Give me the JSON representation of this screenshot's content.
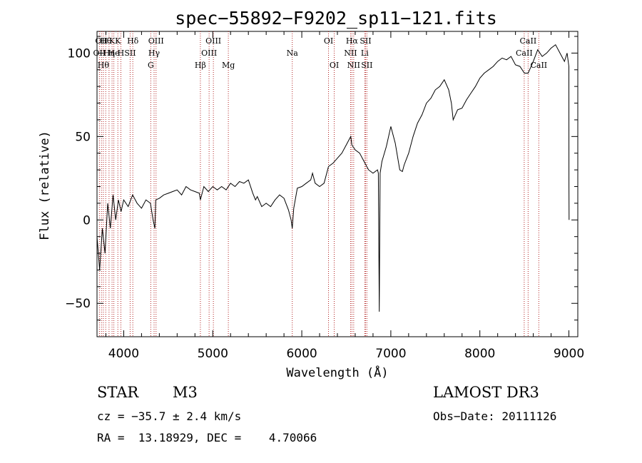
{
  "chart_data": {
    "type": "line",
    "title": "spec−55892−F9202_sp11−121.fits",
    "xlabel": "Wavelength (Å)",
    "ylabel": "Flux (relative)",
    "xlim": [
      3700,
      9100
    ],
    "ylim": [
      -70,
      113
    ],
    "xticks": [
      4000,
      5000,
      6000,
      7000,
      8000,
      9000
    ],
    "yticks": [
      -50,
      0,
      50,
      100
    ],
    "ytick_labels": [
      "−50",
      "0",
      "50",
      "100"
    ],
    "line_color": "#000000",
    "marker_color": "#b22222",
    "series": [
      {
        "x": [
          3700,
          3730,
          3760,
          3790,
          3820,
          3850,
          3880,
          3910,
          3940,
          3970,
          4000,
          4050,
          4100,
          4150,
          4200,
          4250,
          4300,
          4330,
          4350,
          4360,
          4400,
          4450,
          4500,
          4550,
          4600,
          4650,
          4700,
          4750,
          4800,
          4850,
          4861,
          4900,
          4950,
          5000,
          5050,
          5100,
          5150,
          5200,
          5250,
          5300,
          5350,
          5400,
          5450,
          5480,
          5500,
          5550,
          5600,
          5650,
          5700,
          5750,
          5800,
          5850,
          5880,
          5893,
          5910,
          5950,
          6000,
          6050,
          6100,
          6120,
          6150,
          6200,
          6250,
          6300,
          6350,
          6400,
          6450,
          6500,
          6550,
          6562,
          6600,
          6650,
          6700,
          6750,
          6800,
          6850,
          6860,
          6870,
          6880,
          6900,
          6950,
          7000,
          7050,
          7100,
          7130,
          7150,
          7200,
          7250,
          7300,
          7350,
          7400,
          7450,
          7500,
          7550,
          7600,
          7650,
          7680,
          7700,
          7750,
          7800,
          7850,
          7900,
          7950,
          8000,
          8050,
          8100,
          8150,
          8200,
          8250,
          8300,
          8350,
          8400,
          8450,
          8500,
          8542,
          8600,
          8650,
          8700,
          8750,
          8800,
          8850,
          8900,
          8950,
          8980,
          9000,
          9001,
          9002
        ],
        "y": [
          -10,
          -30,
          -5,
          -20,
          10,
          -5,
          15,
          0,
          12,
          5,
          12,
          8,
          15,
          10,
          7,
          12,
          10,
          0,
          -5,
          12,
          13,
          15,
          16,
          17,
          18,
          15,
          20,
          18,
          17,
          16,
          12,
          20,
          17,
          20,
          18,
          20,
          18,
          22,
          20,
          23,
          22,
          24,
          16,
          12,
          14,
          8,
          10,
          8,
          12,
          15,
          13,
          6,
          0,
          -5,
          7,
          19,
          20,
          22,
          24,
          28,
          22,
          20,
          22,
          32,
          34,
          37,
          40,
          45,
          50,
          45,
          42,
          40,
          35,
          30,
          28,
          30,
          28,
          -55,
          28,
          35,
          44,
          56,
          46,
          30,
          29,
          33,
          40,
          50,
          58,
          63,
          70,
          73,
          78,
          80,
          84,
          78,
          70,
          60,
          66,
          67,
          72,
          76,
          80,
          85,
          88,
          90,
          92,
          95,
          97,
          96,
          98,
          93,
          92,
          88,
          88,
          95,
          102,
          98,
          100,
          103,
          105,
          100,
          95,
          100,
          92,
          20,
          0
        ]
      }
    ],
    "line_labels": [
      {
        "x": 3727,
        "row": 2,
        "text": "OII"
      },
      {
        "x": 3750,
        "row": 1,
        "text": "OII"
      },
      {
        "x": 3771,
        "row": 3,
        "text": "Hθ"
      },
      {
        "x": 3798,
        "row": 1,
        "text": "Hθ"
      },
      {
        "x": 3835,
        "row": 2,
        "text": "Hη"
      },
      {
        "x": 3869,
        "row": 1,
        "text": "K"
      },
      {
        "x": 3889,
        "row": 2,
        "text": "He"
      },
      {
        "x": 3934,
        "row": 1,
        "text": "K"
      },
      {
        "x": 3968,
        "row": 2,
        "text": "H"
      },
      {
        "x": 4072,
        "row": 2,
        "text": "SII"
      },
      {
        "x": 4102,
        "row": 1,
        "text": "Hδ"
      },
      {
        "x": 4304,
        "row": 3,
        "text": "G"
      },
      {
        "x": 4341,
        "row": 2,
        "text": "Hγ"
      },
      {
        "x": 4363,
        "row": 1,
        "text": "OIII"
      },
      {
        "x": 4861,
        "row": 3,
        "text": "Hβ"
      },
      {
        "x": 4959,
        "row": 2,
        "text": "OIII"
      },
      {
        "x": 5007,
        "row": 1,
        "text": "OIII"
      },
      {
        "x": 5175,
        "row": 3,
        "text": "Mg"
      },
      {
        "x": 5893,
        "row": 2,
        "text": "Na"
      },
      {
        "x": 6300,
        "row": 1,
        "text": "OI"
      },
      {
        "x": 6364,
        "row": 3,
        "text": "OI"
      },
      {
        "x": 6548,
        "row": 2,
        "text": "NII"
      },
      {
        "x": 6563,
        "row": 1,
        "text": "Hα"
      },
      {
        "x": 6583,
        "row": 3,
        "text": "NII"
      },
      {
        "x": 6707,
        "row": 2,
        "text": "Li"
      },
      {
        "x": 6716,
        "row": 1,
        "text": "SII"
      },
      {
        "x": 6731,
        "row": 3,
        "text": "SII"
      },
      {
        "x": 8498,
        "row": 2,
        "text": "CaII"
      },
      {
        "x": 8542,
        "row": 1,
        "text": "CaII"
      },
      {
        "x": 8662,
        "row": 3,
        "text": "CaII"
      }
    ]
  },
  "info": {
    "object_type": "STAR",
    "subclass": "M3",
    "survey": "LAMOST DR3",
    "cz": "cz = −35.7 ± 2.4 km/s",
    "obs_date": "Obs−Date: 20111126",
    "coords": "RA =  13.18929, DEC =    4.70066"
  }
}
